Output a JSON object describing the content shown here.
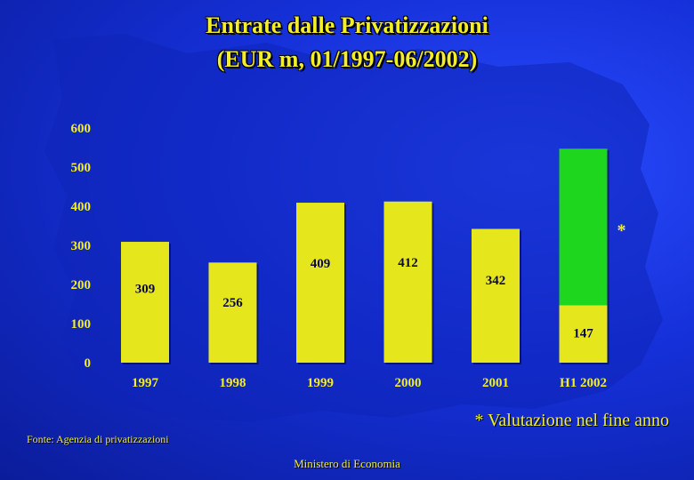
{
  "header": {
    "title_line1": "Entrate dalle Privatizzazioni",
    "title_line2": "(EUR m, 01/1997-06/2002)"
  },
  "footer": {
    "note": "* Valutazione nel fine anno",
    "source": "Fonte: Agenzia di privatizzazioni",
    "ministry": "Ministero di Economia"
  },
  "colors": {
    "bar": "#e6e61c",
    "bar_estimate": "#1fd61f",
    "text": "#f2ee2a"
  },
  "chart_data": {
    "type": "bar",
    "title": "Entrate dalle Privatizzazioni",
    "subtitle": "(EUR m, 01/1997-06/2002)",
    "categories": [
      "1997",
      "1998",
      "1999",
      "2000",
      "2001",
      "H1 2002"
    ],
    "values": [
      309,
      256,
      409,
      412,
      342,
      147
    ],
    "value_labels": [
      "309",
      "256",
      "409",
      "412",
      "342",
      "147"
    ],
    "estimate": {
      "category": "H1 2002",
      "total": 547,
      "marker": "*"
    },
    "y_ticks": [
      "0",
      "100",
      "200",
      "300",
      "400",
      "500",
      "600"
    ],
    "ylim": [
      0,
      600
    ],
    "grid": false,
    "legend": "none"
  }
}
